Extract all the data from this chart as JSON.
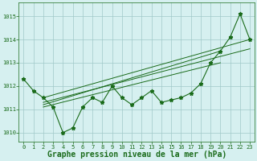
{
  "x": [
    0,
    1,
    2,
    3,
    4,
    5,
    6,
    7,
    8,
    9,
    10,
    11,
    12,
    13,
    14,
    15,
    16,
    17,
    18,
    19,
    20,
    21,
    22,
    23
  ],
  "y": [
    1012.3,
    1011.8,
    1011.5,
    1011.1,
    1010.0,
    1010.2,
    1011.1,
    1011.5,
    1011.3,
    1012.0,
    1011.5,
    1011.2,
    1011.5,
    1011.8,
    1011.3,
    1011.4,
    1011.5,
    1011.7,
    1012.1,
    1013.0,
    1013.5,
    1014.1,
    1015.1,
    1014.0
  ],
  "trend1_x": [
    2,
    23
  ],
  "trend1_y": [
    1011.5,
    1014.0
  ],
  "trend2_x": [
    2,
    23
  ],
  "trend2_y": [
    1011.3,
    1013.6
  ],
  "trend3_x": [
    2,
    20
  ],
  "trend3_y": [
    1011.2,
    1013.5
  ],
  "trend4_x": [
    2,
    20
  ],
  "trend4_y": [
    1011.1,
    1013.0
  ],
  "ylim": [
    1009.6,
    1015.6
  ],
  "xlim": [
    -0.5,
    23.5
  ],
  "yticks": [
    1010,
    1011,
    1012,
    1013,
    1014,
    1015
  ],
  "xticks": [
    0,
    1,
    2,
    3,
    4,
    5,
    6,
    7,
    8,
    9,
    10,
    11,
    12,
    13,
    14,
    15,
    16,
    17,
    18,
    19,
    20,
    21,
    22,
    23
  ],
  "line_color": "#1a6b1a",
  "bg_color": "#d6f0f0",
  "grid_color": "#a0c8c8",
  "xlabel": "Graphe pression niveau de la mer (hPa)",
  "title_fontsize": 7,
  "tick_fontsize": 5.0,
  "marker": "*",
  "marker_size": 3.5
}
